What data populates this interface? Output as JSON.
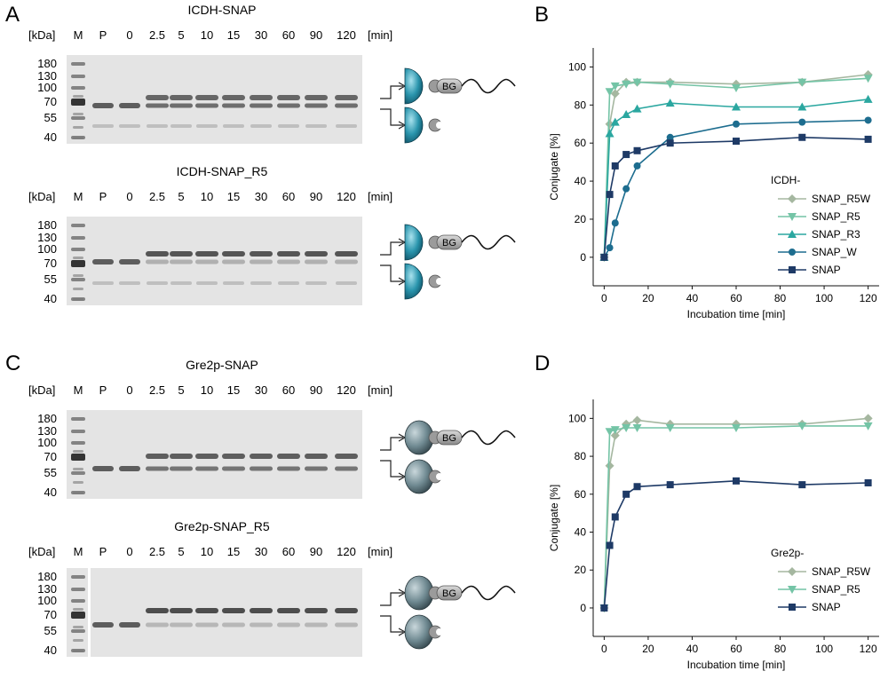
{
  "panels": {
    "A": {
      "letter": "A",
      "gel_top": {
        "title": "ICDH-SNAP",
        "lanes": [
          "M",
          "P",
          "0",
          "2.5",
          "5",
          "10",
          "15",
          "30",
          "60",
          "90",
          "120"
        ],
        "marker_unit": "[kDa]",
        "time_unit": "[min]",
        "markers": [
          "180",
          "130",
          "100",
          "70",
          "55",
          "40"
        ]
      },
      "gel_bottom": {
        "title": "ICDH-SNAP_R5",
        "lanes": [
          "M",
          "P",
          "0",
          "2.5",
          "5",
          "10",
          "15",
          "30",
          "60",
          "90",
          "120"
        ],
        "marker_unit": "[kDa]",
        "time_unit": "[min]",
        "markers": [
          "180",
          "130",
          "100",
          "70",
          "55",
          "40"
        ]
      },
      "scheme_label": "BG",
      "protein_color": "#2a8fa6"
    },
    "C": {
      "letter": "C",
      "gel_top": {
        "title": "Gre2p-SNAP",
        "lanes": [
          "M",
          "P",
          "0",
          "2.5",
          "5",
          "10",
          "15",
          "30",
          "60",
          "90",
          "120"
        ],
        "marker_unit": "[kDa]",
        "time_unit": "[min]",
        "markers": [
          "180",
          "130",
          "100",
          "70",
          "55",
          "40"
        ]
      },
      "gel_bottom": {
        "title": "Gre2p-SNAP_R5",
        "lanes": [
          "M",
          "P",
          "0",
          "2.5",
          "5",
          "10",
          "15",
          "30",
          "60",
          "90",
          "120"
        ],
        "marker_unit": "[kDa]",
        "time_unit": "[min]",
        "markers": [
          "180",
          "130",
          "100",
          "70",
          "55",
          "40"
        ]
      },
      "scheme_label": "BG",
      "protein_color": "#6e8890"
    },
    "B": {
      "letter": "B",
      "legend_title": "ICDH-"
    },
    "D": {
      "letter": "D",
      "legend_title": "Gre2p-"
    }
  },
  "chart_data": [
    {
      "panel": "B",
      "type": "line",
      "xlabel": "Incubation time [min]",
      "ylabel": "Conjugate [%]",
      "xlim": [
        -5,
        125
      ],
      "ylim": [
        -15,
        110
      ],
      "xticks": [
        0,
        20,
        40,
        60,
        80,
        100,
        120
      ],
      "yticks": [
        0,
        20,
        40,
        60,
        80,
        100
      ],
      "legend_title": "ICDH-",
      "legend_position": "right",
      "grid": false,
      "series": [
        {
          "name": "SNAP_R5W",
          "color": "#a5b7a0",
          "marker": "diamond",
          "x": [
            0,
            2.5,
            5,
            10,
            15,
            30,
            60,
            90,
            120
          ],
          "y": [
            0,
            70,
            86,
            92,
            92,
            92,
            91,
            92,
            96
          ]
        },
        {
          "name": "SNAP_R5",
          "color": "#74c4a6",
          "marker": "triangle-down",
          "x": [
            0,
            2.5,
            5,
            10,
            15,
            30,
            60,
            90,
            120
          ],
          "y": [
            0,
            87,
            90,
            91,
            92,
            91,
            89,
            92,
            94
          ]
        },
        {
          "name": "SNAP_R3",
          "color": "#2ba7a0",
          "marker": "triangle-up",
          "x": [
            0,
            2.5,
            5,
            10,
            15,
            30,
            60,
            90,
            120
          ],
          "y": [
            0,
            65,
            71,
            75,
            78,
            81,
            79,
            79,
            83
          ]
        },
        {
          "name": "SNAP_W",
          "color": "#1d6d8f",
          "marker": "circle",
          "x": [
            0,
            2.5,
            5,
            10,
            15,
            30,
            60,
            90,
            120
          ],
          "y": [
            0,
            5,
            18,
            36,
            48,
            63,
            70,
            71,
            72
          ]
        },
        {
          "name": "SNAP",
          "color": "#1e3a66",
          "marker": "square",
          "x": [
            0,
            2.5,
            5,
            10,
            15,
            30,
            60,
            90,
            120
          ],
          "y": [
            0,
            33,
            48,
            54,
            56,
            60,
            61,
            63,
            62
          ]
        }
      ]
    },
    {
      "panel": "D",
      "type": "line",
      "xlabel": "Incubation time [min]",
      "ylabel": "Conjugate [%]",
      "xlim": [
        -5,
        125
      ],
      "ylim": [
        -15,
        110
      ],
      "xticks": [
        0,
        20,
        40,
        60,
        80,
        100,
        120
      ],
      "yticks": [
        0,
        20,
        40,
        60,
        80,
        100
      ],
      "legend_title": "Gre2p-",
      "legend_position": "bottom-right",
      "grid": false,
      "series": [
        {
          "name": "SNAP_R5W",
          "color": "#a5b7a0",
          "marker": "diamond",
          "x": [
            0,
            2.5,
            5,
            10,
            15,
            30,
            60,
            90,
            120
          ],
          "y": [
            0,
            75,
            91,
            97,
            99,
            97,
            97,
            97,
            100
          ]
        },
        {
          "name": "SNAP_R5",
          "color": "#74c4a6",
          "marker": "triangle-down",
          "x": [
            0,
            2.5,
            5,
            10,
            15,
            30,
            60,
            90,
            120
          ],
          "y": [
            0,
            93,
            94,
            95,
            95,
            95,
            95,
            96,
            96
          ]
        },
        {
          "name": "SNAP",
          "color": "#1e3a66",
          "marker": "square",
          "x": [
            0,
            2.5,
            5,
            10,
            15,
            30,
            60,
            90,
            120
          ],
          "y": [
            0,
            33,
            48,
            60,
            64,
            65,
            67,
            65,
            66
          ]
        }
      ]
    }
  ]
}
